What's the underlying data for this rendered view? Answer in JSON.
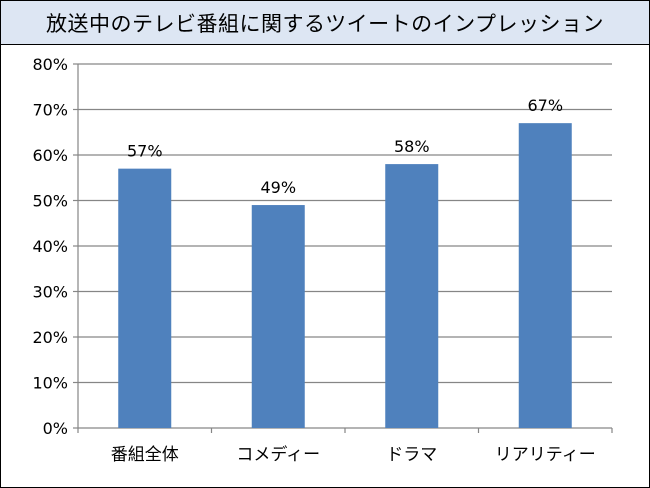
{
  "chart_data": {
    "type": "bar",
    "title": "放送中のテレビ番組に関するツイートのインプレッション",
    "xlabel": "",
    "ylabel": "",
    "categories": [
      "番組全体",
      "コメディー",
      "ドラマ",
      "リアリティー"
    ],
    "values": [
      57,
      49,
      58,
      67
    ],
    "value_labels": [
      "57%",
      "49%",
      "58%",
      "67%"
    ],
    "ylim": [
      0,
      80
    ],
    "yticks": [
      0,
      10,
      20,
      30,
      40,
      50,
      60,
      70,
      80
    ],
    "ytick_labels": [
      "0%",
      "10%",
      "20%",
      "30%",
      "40%",
      "50%",
      "60%",
      "70%",
      "80%"
    ],
    "grid": true,
    "legend": false,
    "bar_color": "#4f81bd",
    "grid_color": "#868686",
    "title_background": "#dde6f3"
  }
}
